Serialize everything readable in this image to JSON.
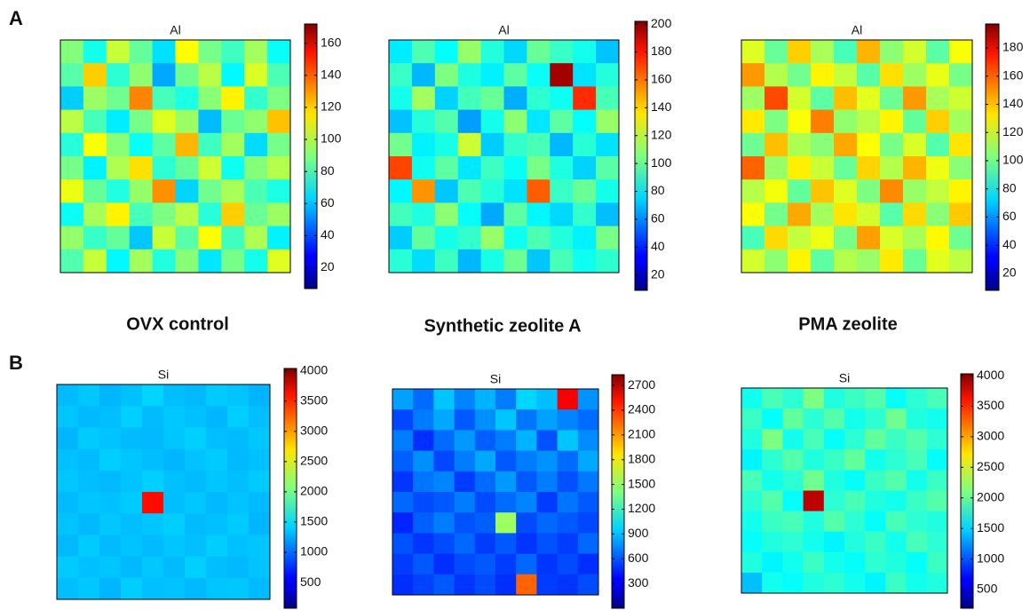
{
  "figure": {
    "panel_labels": [
      "A",
      "B"
    ],
    "column_labels": [
      "OVX control",
      "Synthetic zeolite A",
      "PMA zeolite"
    ]
  },
  "chart_data": [
    {
      "type": "heatmap",
      "title": "Al",
      "colormap": "jet",
      "clim": [
        7,
        172
      ],
      "cticks": [
        20,
        40,
        60,
        80,
        100,
        120,
        140,
        160
      ],
      "z": [
        [
          90,
          72,
          101,
          85,
          64,
          110,
          88,
          79,
          95,
          70
        ],
        [
          83,
          118,
          76,
          92,
          55,
          87,
          99,
          68,
          104,
          81
        ],
        [
          61,
          94,
          87,
          130,
          80,
          73,
          91,
          112,
          77,
          89
        ],
        [
          99,
          80,
          66,
          88,
          105,
          94,
          58,
          86,
          92,
          120
        ],
        [
          75,
          109,
          91,
          70,
          84,
          122,
          79,
          95,
          63,
          88
        ],
        [
          88,
          67,
          97,
          115,
          76,
          85,
          102,
          71,
          90,
          98
        ],
        [
          107,
          85,
          74,
          93,
          128,
          62,
          87,
          96,
          81,
          73
        ],
        [
          70,
          96,
          112,
          80,
          89,
          99,
          75,
          118,
          86,
          94
        ],
        [
          93,
          78,
          85,
          60,
          101,
          83,
          110,
          79,
          97,
          67
        ],
        [
          82,
          101,
          68,
          95,
          74,
          91,
          65,
          88,
          72,
          105
        ]
      ]
    },
    {
      "type": "heatmap",
      "title": "Al",
      "colormap": "jet",
      "clim": [
        9,
        202
      ],
      "cticks": [
        20,
        40,
        60,
        80,
        100,
        120,
        140,
        160,
        180,
        200
      ],
      "z": [
        [
          78,
          96,
          82,
          110,
          88,
          74,
          101,
          92,
          85,
          70
        ],
        [
          92,
          68,
          105,
          87,
          79,
          99,
          83,
          195,
          76,
          88
        ],
        [
          85,
          112,
          73,
          94,
          101,
          66,
          90,
          84,
          170,
          95
        ],
        [
          70,
          88,
          97,
          63,
          85,
          108,
          77,
          99,
          82,
          110
        ],
        [
          103,
          79,
          86,
          120,
          72,
          91,
          95,
          68,
          89,
          76
        ],
        [
          165,
          84,
          99,
          77,
          93,
          83,
          104,
          87,
          73,
          98
        ],
        [
          80,
          150,
          71,
          96,
          88,
          76,
          160,
          92,
          101,
          85
        ],
        [
          94,
          87,
          108,
          82,
          65,
          99,
          80,
          74,
          91,
          69
        ],
        [
          72,
          100,
          85,
          91,
          110,
          84,
          96,
          88,
          79,
          104
        ],
        [
          89,
          75,
          93,
          68,
          86,
          102,
          71,
          95,
          84,
          90
        ]
      ]
    },
    {
      "type": "heatmap",
      "title": "Al",
      "colormap": "jet",
      "clim": [
        8,
        197
      ],
      "cticks": [
        20,
        40,
        60,
        80,
        100,
        120,
        140,
        160,
        180
      ],
      "z": [
        [
          120,
          98,
          135,
          110,
          92,
          140,
          105,
          118,
          96,
          125
        ],
        [
          145,
          112,
          100,
          128,
          115,
          95,
          132,
          108,
          122,
          101
        ],
        [
          108,
          160,
          118,
          96,
          138,
          121,
          99,
          145,
          110,
          117
        ],
        [
          130,
          102,
          125,
          150,
          106,
          113,
          128,
          97,
          135,
          109
        ],
        [
          99,
          138,
          111,
          104,
          142,
          126,
          101,
          119,
          94,
          131
        ],
        [
          155,
          107,
          129,
          116,
          98,
          134,
          112,
          140,
          123,
          104
        ],
        [
          113,
          124,
          97,
          137,
          120,
          102,
          148,
          107,
          115,
          128
        ],
        [
          126,
          100,
          142,
          109,
          131,
          118,
          95,
          133,
          104,
          136
        ],
        [
          92,
          133,
          115,
          123,
          101,
          144,
          119,
          110,
          127,
          99
        ],
        [
          118,
          105,
          128,
          96,
          112,
          107,
          130,
          98,
          121,
          114
        ]
      ]
    },
    {
      "type": "heatmap",
      "title": "Si",
      "colormap": "jet",
      "clim": [
        75,
        4040
      ],
      "cticks": [
        500,
        1000,
        1500,
        2000,
        2500,
        3000,
        3500,
        4000
      ],
      "z": [
        [
          1300,
          1350,
          1280,
          1320,
          1400,
          1310,
          1290,
          1360,
          1330,
          1270
        ],
        [
          1340,
          1290,
          1310,
          1380,
          1300,
          1350,
          1320,
          1280,
          1370,
          1310
        ],
        [
          1280,
          1360,
          1330,
          1300,
          1290,
          1340,
          1380,
          1310,
          1300,
          1350
        ],
        [
          1320,
          1300,
          1370,
          1340,
          1310,
          1280,
          1330,
          1360,
          1290,
          1320
        ],
        [
          1350,
          1310,
          1290,
          1330,
          1380,
          1320,
          1300,
          1340,
          1310,
          1360
        ],
        [
          1300,
          1340,
          1320,
          1360,
          3500,
          1310,
          1350,
          1290,
          1330,
          1300
        ],
        [
          1330,
          1290,
          1350,
          1310,
          1340,
          1370,
          1300,
          1320,
          1360,
          1280
        ],
        [
          1290,
          1360,
          1300,
          1330,
          1300,
          1340,
          1310,
          1370,
          1320,
          1340
        ],
        [
          1360,
          1320,
          1340,
          1290,
          1350,
          1300,
          1380,
          1310,
          1290,
          1330
        ],
        [
          1310,
          1350,
          1280,
          1370,
          1320,
          1330,
          1290,
          1340,
          1350,
          1300
        ]
      ]
    },
    {
      "type": "heatmap",
      "title": "Si",
      "colormap": "jet",
      "clim": [
        0,
        2830
      ],
      "cticks": [
        300,
        600,
        900,
        1200,
        1500,
        1800,
        2100,
        2400,
        2700
      ],
      "z": [
        [
          800,
          650,
          900,
          720,
          850,
          700,
          950,
          880,
          2500,
          760
        ],
        [
          550,
          700,
          820,
          600,
          750,
          900,
          680,
          800,
          720,
          650
        ],
        [
          700,
          480,
          650,
          780,
          620,
          700,
          850,
          580,
          900,
          740
        ],
        [
          620,
          750,
          550,
          700,
          820,
          600,
          700,
          760,
          650,
          820
        ],
        [
          500,
          680,
          720,
          520,
          650,
          780,
          600,
          700,
          580,
          690
        ],
        [
          640,
          560,
          600,
          700,
          560,
          650,
          720,
          520,
          680,
          600
        ],
        [
          450,
          620,
          700,
          580,
          620,
          1500,
          560,
          640,
          600,
          550
        ],
        [
          580,
          500,
          560,
          640,
          520,
          600,
          500,
          580,
          520,
          640
        ],
        [
          520,
          600,
          480,
          560,
          600,
          520,
          640,
          500,
          560,
          480
        ],
        [
          480,
          540,
          600,
          500,
          560,
          480,
          2200,
          520,
          500,
          560
        ]
      ]
    },
    {
      "type": "heatmap",
      "title": "Si",
      "colormap": "jet",
      "clim": [
        195,
        4030
      ],
      "cticks": [
        500,
        1000,
        1500,
        2000,
        2500,
        3000,
        3500,
        4000
      ],
      "z": [
        [
          1700,
          1900,
          1800,
          2100,
          1750,
          1850,
          1950,
          1650,
          1800,
          1900
        ],
        [
          1850,
          1650,
          2000,
          1800,
          1950,
          1700,
          1800,
          2050,
          1750,
          1700
        ],
        [
          1750,
          2100,
          1700,
          1900,
          1650,
          1800,
          2000,
          1850,
          1950,
          1800
        ],
        [
          1600,
          1800,
          1950,
          1750,
          1850,
          2000,
          1700,
          1800,
          1900,
          1650
        ],
        [
          1900,
          1700,
          1800,
          2050,
          1750,
          1650,
          1850,
          1950,
          1700,
          1850
        ],
        [
          1800,
          1950,
          1650,
          3800,
          1800,
          1900,
          1750,
          1700,
          1850,
          1950
        ],
        [
          1700,
          1850,
          1900,
          1750,
          1950,
          1800,
          1650,
          1900,
          1800,
          1750
        ],
        [
          1650,
          1750,
          1800,
          1700,
          1600,
          1750,
          1850,
          1700,
          1900,
          1800
        ],
        [
          1750,
          1600,
          1700,
          1850,
          1700,
          1650,
          1800,
          1750,
          1650,
          1850
        ],
        [
          1400,
          1700,
          1650,
          1750,
          1800,
          1700,
          1600,
          1850,
          1700,
          1750
        ]
      ]
    }
  ]
}
